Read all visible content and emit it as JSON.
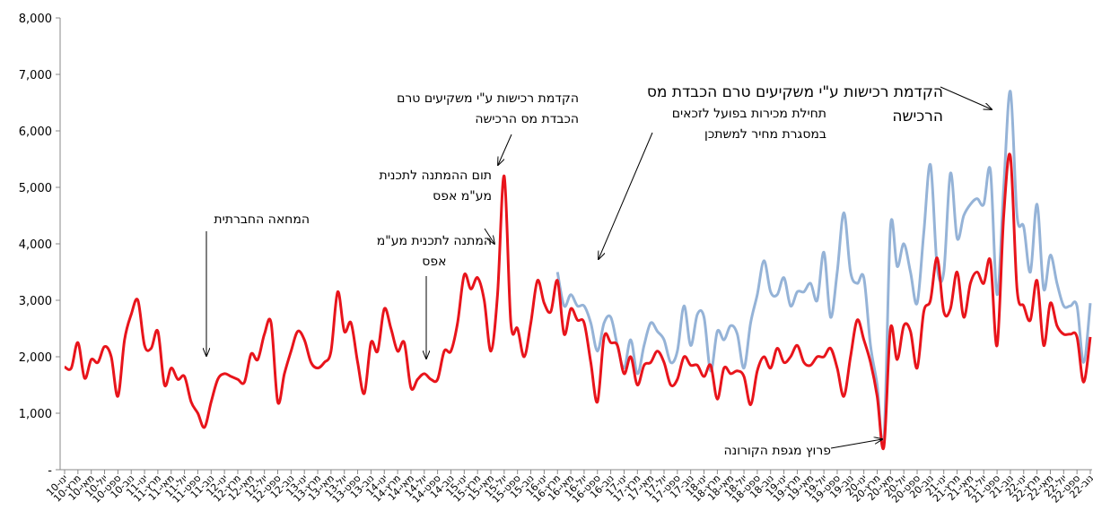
{
  "chart_data": {
    "type": "line",
    "categories": [
      "ינו-10",
      null,
      "מרץ-10",
      null,
      "מאי-10",
      null,
      "יול-10",
      null,
      "ספט-10",
      null,
      "נוב-10",
      null,
      "ינו-11",
      null,
      "מרץ-11",
      null,
      "מאי-11",
      null,
      "יול-11",
      null,
      "ספט-11",
      null,
      "נוב-11",
      null,
      "ינו-12",
      null,
      "מרץ-12",
      null,
      "מאי-12",
      null,
      "יול-12",
      null,
      "ספט-12",
      null,
      "נוב-12",
      null,
      "ינו-13",
      null,
      "מרץ-13",
      null,
      "מאי-13",
      null,
      "יול-13",
      null,
      "ספט-13",
      null,
      "נוב-13",
      null,
      "ינו-14",
      null,
      "מרץ-14",
      null,
      "מאי-14",
      null,
      "יול-14",
      null,
      "ספט-14",
      null,
      "נוב-14",
      null,
      "ינו-15",
      null,
      "מרץ-15",
      null,
      "מאי-15",
      null,
      "יול-15",
      null,
      "ספט-15",
      null,
      "נוב-15",
      null,
      "ינו-16",
      null,
      "מרץ-16",
      null,
      "מאי-16",
      null,
      "יול-16",
      null,
      "ספט-16",
      null,
      "נוב-16",
      null,
      "ינו-17",
      null,
      "מרץ-17",
      null,
      "מאי-17",
      null,
      "יול-17",
      null,
      "ספט-17",
      null,
      "נוב-17",
      null,
      "ינו-18",
      null,
      "מרץ-18",
      null,
      "מאי-18",
      null,
      "יול-18",
      null,
      "ספט-18",
      null,
      "נוב-18",
      null,
      "ינו-19",
      null,
      "מרץ-19",
      null,
      "מאי-19",
      null,
      "יול-19",
      null,
      "ספט-19",
      null,
      "נוב-19",
      null,
      "ינו-20",
      null,
      "מרץ-20",
      null,
      "מאי-20",
      null,
      "יול-20",
      null,
      "ספט-20",
      null,
      "נוב-20",
      null,
      "ינו-21",
      null,
      "מרץ-21",
      null,
      "מאי-21",
      null,
      "יול-21",
      null,
      "ספט-21",
      null,
      "נוב-21",
      null,
      "ינו-22",
      null,
      "מרץ-22",
      null,
      "מאי-22",
      null,
      "יול-22",
      null,
      "ספט-22",
      null,
      "נוב-22"
    ],
    "series": [
      {
        "color": "#95b3d7",
        "values": [
          null,
          null,
          null,
          null,
          null,
          null,
          null,
          null,
          null,
          null,
          null,
          null,
          null,
          null,
          null,
          null,
          null,
          null,
          null,
          null,
          null,
          null,
          null,
          null,
          null,
          null,
          null,
          null,
          null,
          null,
          null,
          null,
          null,
          null,
          null,
          null,
          null,
          null,
          null,
          null,
          null,
          null,
          null,
          null,
          null,
          null,
          null,
          null,
          null,
          null,
          null,
          null,
          null,
          null,
          null,
          null,
          null,
          null,
          null,
          null,
          null,
          null,
          null,
          null,
          null,
          null,
          null,
          null,
          null,
          null,
          null,
          null,
          null,
          null,
          3500,
          2900,
          3100,
          2900,
          2900,
          2600,
          2100,
          2600,
          2700,
          2200,
          1800,
          2300,
          1700,
          2200,
          2600,
          2450,
          2300,
          1900,
          2100,
          2900,
          2200,
          2750,
          2700,
          1750,
          2450,
          2300,
          2550,
          2400,
          1800,
          2600,
          3100,
          3700,
          3150,
          3100,
          3400,
          2900,
          3150,
          3150,
          3300,
          3000,
          3850,
          2700,
          3500,
          4550,
          3500,
          3300,
          3400,
          2200,
          1500,
          500,
          4300,
          3600,
          4000,
          3500,
          2950,
          4200,
          5400,
          3600,
          3500,
          5250,
          4100,
          4500,
          4700,
          4800,
          4700,
          5300,
          3100,
          5000,
          6700,
          4500,
          4300,
          3500,
          4700,
          3200,
          3800,
          3300,
          2900,
          2900,
          2900,
          1900,
          2950
        ]
      },
      {
        "color": "#e8141b",
        "values": [
          1820,
          1800,
          2250,
          1620,
          1950,
          1900,
          2180,
          2000,
          1300,
          2300,
          2750,
          3000,
          2200,
          2150,
          2450,
          1500,
          1800,
          1600,
          1650,
          1200,
          1000,
          750,
          1200,
          1600,
          1700,
          1650,
          1600,
          1550,
          2050,
          1950,
          2400,
          2600,
          1200,
          1700,
          2100,
          2450,
          2300,
          1900,
          1800,
          1900,
          2100,
          3150,
          2450,
          2600,
          1900,
          1350,
          2250,
          2100,
          2850,
          2500,
          2100,
          2250,
          1450,
          1600,
          1700,
          1600,
          1600,
          2100,
          2100,
          2600,
          3450,
          3200,
          3400,
          3000,
          2100,
          3100,
          5200,
          2600,
          2500,
          2000,
          2600,
          3350,
          2950,
          2800,
          3350,
          2400,
          2850,
          2650,
          2600,
          1900,
          1200,
          2350,
          2250,
          2200,
          1700,
          2000,
          1500,
          1850,
          1900,
          2100,
          1900,
          1500,
          1600,
          2000,
          1850,
          1850,
          1650,
          1850,
          1250,
          1800,
          1700,
          1750,
          1650,
          1150,
          1750,
          2000,
          1800,
          2150,
          1900,
          2000,
          2200,
          1900,
          1850,
          2000,
          2000,
          2150,
          1800,
          1300,
          2000,
          2650,
          2300,
          1900,
          1300,
          400,
          2500,
          1950,
          2550,
          2450,
          1800,
          2800,
          3000,
          3750,
          2800,
          2850,
          3500,
          2700,
          3300,
          3500,
          3300,
          3700,
          2200,
          4500,
          5550,
          3200,
          2900,
          2650,
          3350,
          2200,
          2950,
          2550,
          2400,
          2400,
          2350,
          1550,
          2350
        ]
      }
    ],
    "ylim": [
      0,
      8000
    ],
    "yticks": [
      {
        "value": 0,
        "label": "-"
      },
      {
        "value": 1000,
        "label": "1,000"
      },
      {
        "value": 2000,
        "label": "2,000"
      },
      {
        "value": 3000,
        "label": "3,000"
      },
      {
        "value": 4000,
        "label": "4,000"
      },
      {
        "value": 5000,
        "label": "5,000"
      },
      {
        "value": 6000,
        "label": "6,000"
      },
      {
        "value": 7000,
        "label": "7,000"
      },
      {
        "value": 8000,
        "label": "8,000"
      }
    ],
    "grid": false,
    "annotations": [
      {
        "lines": [
          "המחאה החברתית"
        ]
      },
      {
        "lines": [
          "המתנה לתכנית מע\"מ",
          "אפס"
        ]
      },
      {
        "lines": [
          "תום ההמתנה לתכנית",
          "מע\"מ אפס"
        ]
      },
      {
        "lines": [
          "הקדמת רכישות ע\"י משקיעים טרם",
          "הכבדת מס הרכישה"
        ]
      },
      {
        "lines": [
          "תחילת מכירות בפועל לזכאים",
          "במסגרת מחיר למשתכן"
        ]
      },
      {
        "lines": [
          "הקדמת רכישות ע\"י משקיעים טרם הכבדת מס",
          "הרכישה"
        ]
      },
      {
        "lines": [
          "פרוץ מגפת הקורונה"
        ]
      }
    ]
  }
}
